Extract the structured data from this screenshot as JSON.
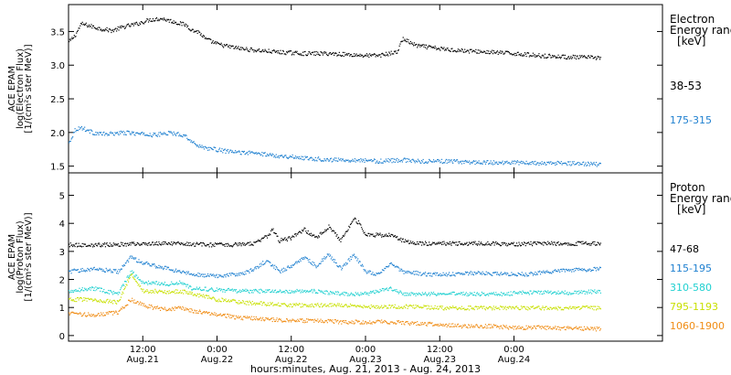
{
  "chart_data": [
    {
      "type": "scatter",
      "title": "",
      "ylabel_lines": [
        "ACE EPAM",
        "log(Electron Flux)",
        "[1/(cm²s ster MeV)]"
      ],
      "yticks": [
        {
          "label": "1.5",
          "value": 1.5
        },
        {
          "label": "2.0",
          "value": 2.0
        },
        {
          "label": "2.5",
          "value": 2.5
        },
        {
          "label": "3.0",
          "value": 3.0
        },
        {
          "label": "3.5",
          "value": 3.5
        }
      ],
      "ylim": [
        1.4,
        3.9
      ],
      "xlim_hours": [
        0,
        96
      ],
      "legend_title_lines": [
        "Electron",
        "Energy range",
        "[keV]"
      ],
      "series": [
        {
          "name": "38-53",
          "color": "#000000",
          "points": [
            [
              0,
              3.35
            ],
            [
              1,
              3.45
            ],
            [
              2,
              3.62
            ],
            [
              3,
              3.6
            ],
            [
              5,
              3.55
            ],
            [
              7,
              3.52
            ],
            [
              9,
              3.58
            ],
            [
              11,
              3.62
            ],
            [
              13,
              3.68
            ],
            [
              15,
              3.7
            ],
            [
              17,
              3.65
            ],
            [
              19,
              3.6
            ],
            [
              20,
              3.52
            ],
            [
              21,
              3.5
            ],
            [
              22,
              3.4
            ],
            [
              24,
              3.32
            ],
            [
              26,
              3.28
            ],
            [
              28,
              3.25
            ],
            [
              30,
              3.23
            ],
            [
              34,
              3.2
            ],
            [
              38,
              3.18
            ],
            [
              42,
              3.18
            ],
            [
              46,
              3.16
            ],
            [
              48,
              3.15
            ],
            [
              50,
              3.15
            ],
            [
              53,
              3.2
            ],
            [
              54,
              3.4
            ],
            [
              56,
              3.3
            ],
            [
              60,
              3.25
            ],
            [
              64,
              3.22
            ],
            [
              68,
              3.2
            ],
            [
              72,
              3.18
            ],
            [
              76,
              3.15
            ],
            [
              80,
              3.13
            ],
            [
              84,
              3.12
            ],
            [
              86,
              3.12
            ]
          ]
        },
        {
          "name": "175-315",
          "color": "#1f80d0",
          "points": [
            [
              0,
              1.85
            ],
            [
              1,
              2.05
            ],
            [
              2,
              2.08
            ],
            [
              4,
              2.0
            ],
            [
              6,
              1.98
            ],
            [
              8,
              2.0
            ],
            [
              10,
              2.0
            ],
            [
              12,
              1.98
            ],
            [
              14,
              1.97
            ],
            [
              16,
              2.0
            ],
            [
              18,
              1.98
            ],
            [
              19,
              1.95
            ],
            [
              20,
              1.85
            ],
            [
              22,
              1.78
            ],
            [
              26,
              1.72
            ],
            [
              30,
              1.7
            ],
            [
              34,
              1.66
            ],
            [
              38,
              1.63
            ],
            [
              42,
              1.6
            ],
            [
              46,
              1.6
            ],
            [
              50,
              1.58
            ],
            [
              54,
              1.6
            ],
            [
              56,
              1.58
            ],
            [
              60,
              1.58
            ],
            [
              64,
              1.57
            ],
            [
              68,
              1.56
            ],
            [
              72,
              1.56
            ],
            [
              76,
              1.55
            ],
            [
              80,
              1.55
            ],
            [
              84,
              1.54
            ],
            [
              86,
              1.53
            ]
          ]
        }
      ]
    },
    {
      "type": "scatter",
      "title": "",
      "ylabel_lines": [
        "ACE EPAM",
        "log(Proton Flux)",
        "[1/(cm²s ster MeV)]"
      ],
      "yticks": [
        {
          "label": "0",
          "value": 0
        },
        {
          "label": "1",
          "value": 1
        },
        {
          "label": "2",
          "value": 2
        },
        {
          "label": "3",
          "value": 3
        },
        {
          "label": "4",
          "value": 4
        },
        {
          "label": "5",
          "value": 5
        }
      ],
      "ylim": [
        -0.2,
        5.8
      ],
      "xlim_hours": [
        0,
        96
      ],
      "legend_title_lines": [
        "Proton",
        "Energy range",
        "[keV]"
      ],
      "series": [
        {
          "name": "47-68",
          "color": "#000000",
          "points": [
            [
              0,
              3.25
            ],
            [
              5,
              3.25
            ],
            [
              10,
              3.28
            ],
            [
              14,
              3.3
            ],
            [
              18,
              3.3
            ],
            [
              22,
              3.25
            ],
            [
              26,
              3.25
            ],
            [
              30,
              3.3
            ],
            [
              32,
              3.55
            ],
            [
              33,
              3.8
            ],
            [
              34,
              3.4
            ],
            [
              36,
              3.5
            ],
            [
              38,
              3.8
            ],
            [
              40,
              3.5
            ],
            [
              42,
              3.9
            ],
            [
              44,
              3.4
            ],
            [
              46,
              4.2
            ],
            [
              47,
              4.0
            ],
            [
              48,
              3.6
            ],
            [
              52,
              3.6
            ],
            [
              54,
              3.4
            ],
            [
              56,
              3.3
            ],
            [
              60,
              3.3
            ],
            [
              64,
              3.3
            ],
            [
              68,
              3.3
            ],
            [
              72,
              3.28
            ],
            [
              76,
              3.3
            ],
            [
              80,
              3.3
            ],
            [
              86,
              3.3
            ]
          ]
        },
        {
          "name": "115-195",
          "color": "#1f80d0",
          "points": [
            [
              0,
              2.3
            ],
            [
              4,
              2.4
            ],
            [
              8,
              2.3
            ],
            [
              10,
              2.8
            ],
            [
              12,
              2.6
            ],
            [
              14,
              2.5
            ],
            [
              16,
              2.4
            ],
            [
              18,
              2.3
            ],
            [
              20,
              2.2
            ],
            [
              24,
              2.15
            ],
            [
              28,
              2.2
            ],
            [
              30,
              2.4
            ],
            [
              32,
              2.7
            ],
            [
              34,
              2.3
            ],
            [
              36,
              2.5
            ],
            [
              38,
              2.8
            ],
            [
              40,
              2.5
            ],
            [
              42,
              2.9
            ],
            [
              44,
              2.4
            ],
            [
              46,
              2.9
            ],
            [
              48,
              2.3
            ],
            [
              50,
              2.2
            ],
            [
              52,
              2.6
            ],
            [
              54,
              2.3
            ],
            [
              58,
              2.2
            ],
            [
              62,
              2.2
            ],
            [
              66,
              2.25
            ],
            [
              70,
              2.2
            ],
            [
              74,
              2.2
            ],
            [
              78,
              2.3
            ],
            [
              82,
              2.35
            ],
            [
              86,
              2.4
            ]
          ]
        },
        {
          "name": "310-580",
          "color": "#20d0d0",
          "points": [
            [
              0,
              1.6
            ],
            [
              4,
              1.7
            ],
            [
              8,
              1.5
            ],
            [
              10,
              2.3
            ],
            [
              12,
              1.9
            ],
            [
              14,
              1.9
            ],
            [
              16,
              1.85
            ],
            [
              18,
              1.9
            ],
            [
              20,
              1.7
            ],
            [
              24,
              1.65
            ],
            [
              28,
              1.6
            ],
            [
              32,
              1.6
            ],
            [
              36,
              1.6
            ],
            [
              40,
              1.6
            ],
            [
              44,
              1.5
            ],
            [
              48,
              1.5
            ],
            [
              50,
              1.6
            ],
            [
              52,
              1.7
            ],
            [
              54,
              1.5
            ],
            [
              58,
              1.5
            ],
            [
              62,
              1.5
            ],
            [
              66,
              1.5
            ],
            [
              70,
              1.5
            ],
            [
              74,
              1.55
            ],
            [
              78,
              1.55
            ],
            [
              82,
              1.55
            ],
            [
              86,
              1.6
            ]
          ]
        },
        {
          "name": "795-1193",
          "color": "#c8e000",
          "points": [
            [
              0,
              1.3
            ],
            [
              4,
              1.3
            ],
            [
              8,
              1.2
            ],
            [
              10,
              2.2
            ],
            [
              12,
              1.6
            ],
            [
              14,
              1.6
            ],
            [
              16,
              1.55
            ],
            [
              18,
              1.6
            ],
            [
              20,
              1.5
            ],
            [
              24,
              1.3
            ],
            [
              28,
              1.2
            ],
            [
              32,
              1.15
            ],
            [
              36,
              1.1
            ],
            [
              40,
              1.1
            ],
            [
              44,
              1.1
            ],
            [
              48,
              1.05
            ],
            [
              52,
              1.05
            ],
            [
              56,
              1.05
            ],
            [
              60,
              1.0
            ],
            [
              64,
              1.0
            ],
            [
              68,
              1.0
            ],
            [
              72,
              1.0
            ],
            [
              76,
              1.0
            ],
            [
              80,
              1.0
            ],
            [
              86,
              1.0
            ]
          ]
        },
        {
          "name": "1060-1900",
          "color": "#f08c14",
          "points": [
            [
              0,
              0.8
            ],
            [
              4,
              0.75
            ],
            [
              8,
              0.85
            ],
            [
              10,
              1.3
            ],
            [
              12,
              1.1
            ],
            [
              14,
              1.0
            ],
            [
              16,
              0.95
            ],
            [
              18,
              1.0
            ],
            [
              20,
              0.9
            ],
            [
              24,
              0.75
            ],
            [
              28,
              0.65
            ],
            [
              32,
              0.6
            ],
            [
              36,
              0.55
            ],
            [
              40,
              0.55
            ],
            [
              44,
              0.5
            ],
            [
              48,
              0.5
            ],
            [
              52,
              0.5
            ],
            [
              56,
              0.45
            ],
            [
              60,
              0.4
            ],
            [
              64,
              0.35
            ],
            [
              68,
              0.35
            ],
            [
              72,
              0.3
            ],
            [
              76,
              0.3
            ],
            [
              80,
              0.28
            ],
            [
              86,
              0.25
            ]
          ]
        }
      ]
    }
  ],
  "x_axis": {
    "ticks": [
      {
        "hour": 12,
        "time": "12:00",
        "day": "Aug.21"
      },
      {
        "hour": 24,
        "time": "0:00",
        "day": "Aug.22"
      },
      {
        "hour": 36,
        "time": "12:00",
        "day": "Aug.22"
      },
      {
        "hour": 48,
        "time": "0:00",
        "day": "Aug.23"
      },
      {
        "hour": 60,
        "time": "12:00",
        "day": "Aug.23"
      },
      {
        "hour": 72,
        "time": "0:00",
        "day": "Aug.24"
      }
    ],
    "label": "hours:minutes, Aug. 21, 2013 - Aug. 24, 2013"
  }
}
